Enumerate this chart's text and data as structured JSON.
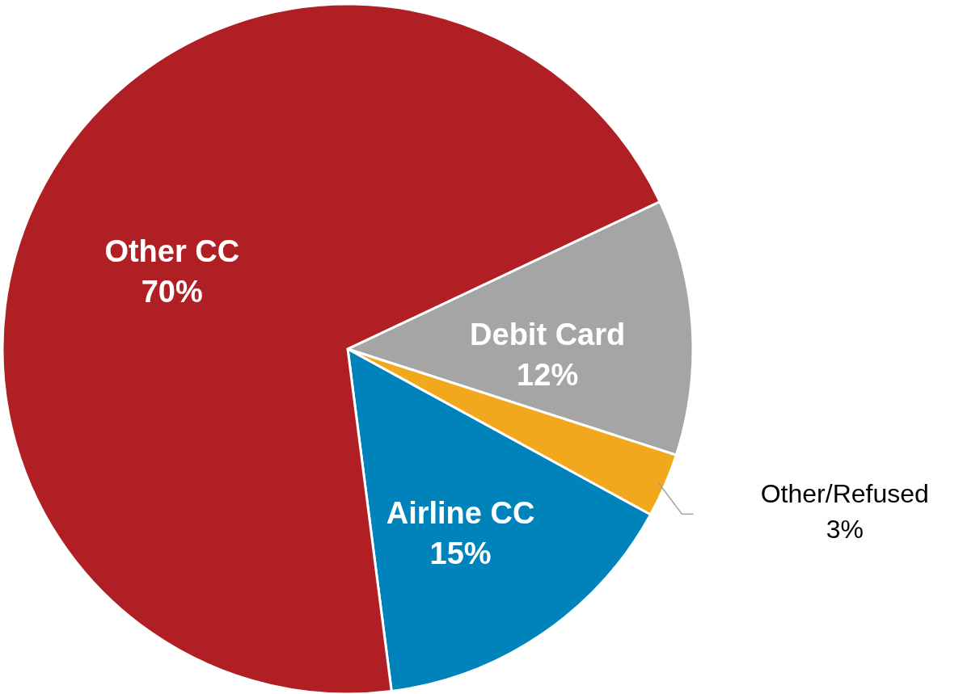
{
  "chart_data": {
    "type": "pie",
    "categories": [
      "Debit Card",
      "Other/Refused",
      "Airline CC",
      "Other CC"
    ],
    "values": [
      12,
      3,
      15,
      70
    ],
    "colors": [
      "#a5a5a5",
      "#f2a81d",
      "#0083bb",
      "#b01f24"
    ],
    "data_labels": true,
    "value_labels": [
      "12%",
      "3%",
      "15%",
      "70%"
    ]
  }
}
